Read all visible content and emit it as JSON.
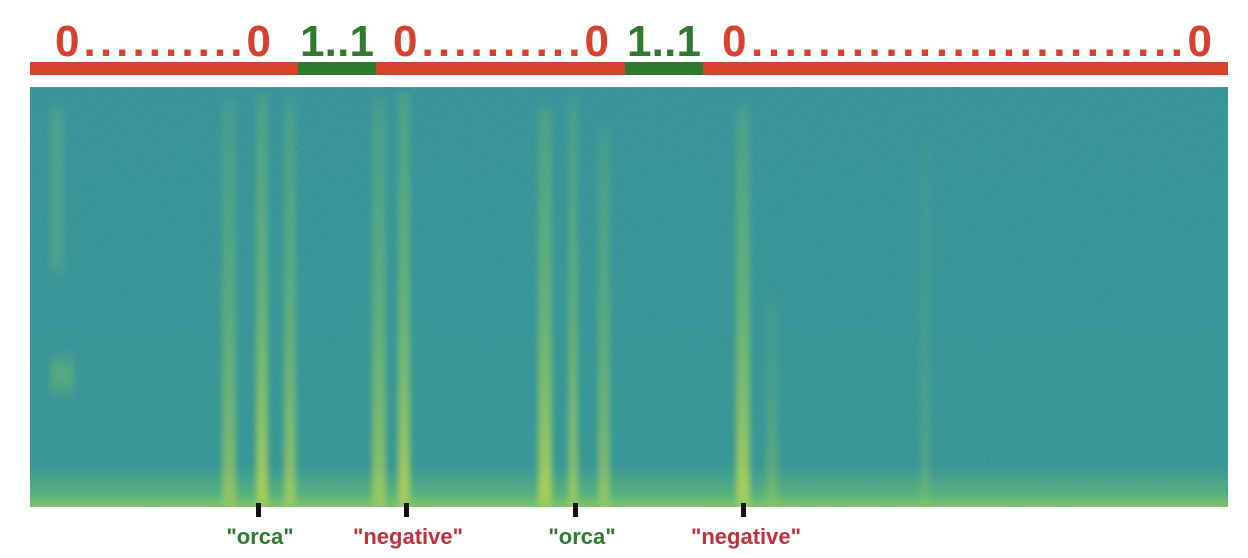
{
  "segments": [
    {
      "label": "0..........0"
    },
    {
      "label": "1..1"
    },
    {
      "label": "0..........0"
    },
    {
      "label": "1..1"
    },
    {
      "label": "0..........................0"
    }
  ],
  "annotations": [
    {
      "label": "\"orca\""
    },
    {
      "label": "\"negative\""
    },
    {
      "label": "\"orca\""
    },
    {
      "label": "\"negative\""
    }
  ]
}
